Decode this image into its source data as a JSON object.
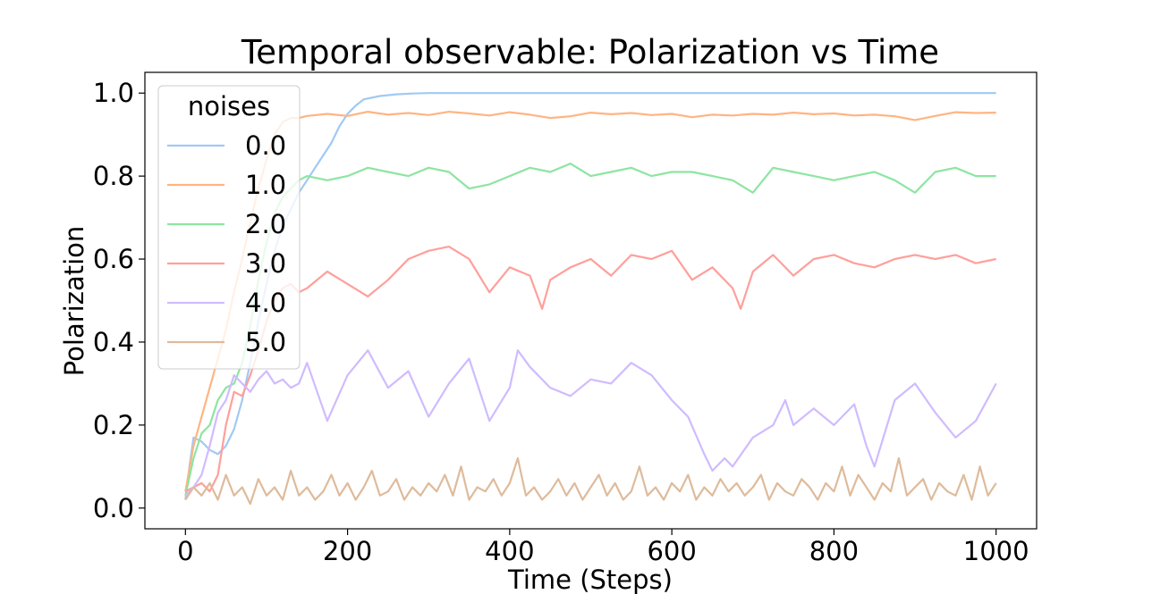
{
  "chart_data": {
    "type": "line",
    "title": "Temporal observable: Polarization vs Time",
    "xlabel": "Time (Steps)",
    "ylabel": "Polarization",
    "xlim": [
      -50,
      1050
    ],
    "ylim": [
      -0.05,
      1.05
    ],
    "xticks": [
      0,
      200,
      400,
      600,
      800,
      1000
    ],
    "xtick_labels": [
      "0",
      "200",
      "400",
      "600",
      "800",
      "1000"
    ],
    "yticks": [
      0.0,
      0.2,
      0.4,
      0.6,
      0.8,
      1.0
    ],
    "ytick_labels": [
      "0.0",
      "0.2",
      "0.4",
      "0.6",
      "0.8",
      "1.0"
    ],
    "grid": false,
    "legend": {
      "title": "noises",
      "placement": "top-left"
    },
    "series": [
      {
        "name": "0.0",
        "color": "#a1c9f4",
        "x": [
          0,
          5,
          10,
          20,
          30,
          40,
          50,
          60,
          70,
          80,
          90,
          100,
          110,
          120,
          130,
          140,
          150,
          160,
          170,
          180,
          190,
          200,
          210,
          220,
          240,
          260,
          280,
          300,
          350,
          400,
          500,
          600,
          700,
          800,
          900,
          1000
        ],
        "y": [
          0.02,
          0.1,
          0.17,
          0.16,
          0.14,
          0.13,
          0.15,
          0.19,
          0.26,
          0.35,
          0.45,
          0.54,
          0.62,
          0.68,
          0.72,
          0.76,
          0.79,
          0.82,
          0.85,
          0.88,
          0.92,
          0.95,
          0.97,
          0.985,
          0.993,
          0.997,
          0.999,
          1.0,
          1.0,
          1.0,
          1.0,
          1.0,
          1.0,
          1.0,
          1.0,
          1.0
        ]
      },
      {
        "name": "1.0",
        "color": "#ffb482",
        "x": [
          0,
          10,
          20,
          30,
          40,
          50,
          60,
          70,
          80,
          90,
          100,
          110,
          120,
          130,
          140,
          150,
          175,
          200,
          225,
          250,
          275,
          300,
          325,
          350,
          375,
          400,
          425,
          450,
          475,
          500,
          525,
          550,
          575,
          600,
          625,
          650,
          675,
          700,
          725,
          750,
          775,
          800,
          825,
          850,
          875,
          900,
          925,
          950,
          975,
          1000
        ],
        "y": [
          0.04,
          0.15,
          0.22,
          0.29,
          0.36,
          0.43,
          0.52,
          0.6,
          0.69,
          0.77,
          0.84,
          0.9,
          0.93,
          0.94,
          0.94,
          0.945,
          0.95,
          0.945,
          0.955,
          0.948,
          0.952,
          0.947,
          0.955,
          0.951,
          0.946,
          0.954,
          0.948,
          0.94,
          0.944,
          0.953,
          0.949,
          0.952,
          0.947,
          0.95,
          0.942,
          0.948,
          0.946,
          0.95,
          0.948,
          0.953,
          0.949,
          0.951,
          0.946,
          0.948,
          0.944,
          0.935,
          0.945,
          0.954,
          0.952,
          0.953
        ]
      },
      {
        "name": "2.0",
        "color": "#8de5a1",
        "x": [
          0,
          10,
          20,
          30,
          40,
          50,
          60,
          70,
          80,
          90,
          100,
          110,
          120,
          130,
          140,
          150,
          175,
          200,
          225,
          250,
          275,
          300,
          325,
          350,
          375,
          400,
          425,
          450,
          475,
          500,
          525,
          550,
          575,
          600,
          625,
          650,
          675,
          700,
          725,
          750,
          775,
          800,
          825,
          850,
          875,
          900,
          925,
          950,
          975,
          1000
        ],
        "y": [
          0.03,
          0.12,
          0.18,
          0.2,
          0.26,
          0.29,
          0.3,
          0.35,
          0.44,
          0.55,
          0.64,
          0.71,
          0.75,
          0.77,
          0.79,
          0.8,
          0.79,
          0.8,
          0.82,
          0.81,
          0.8,
          0.82,
          0.81,
          0.77,
          0.78,
          0.8,
          0.82,
          0.81,
          0.83,
          0.8,
          0.81,
          0.82,
          0.8,
          0.81,
          0.81,
          0.8,
          0.79,
          0.76,
          0.82,
          0.81,
          0.8,
          0.79,
          0.8,
          0.81,
          0.79,
          0.76,
          0.81,
          0.82,
          0.8,
          0.8
        ]
      },
      {
        "name": "3.0",
        "color": "#ff9f9b",
        "x": [
          0,
          10,
          20,
          30,
          40,
          50,
          60,
          70,
          80,
          90,
          100,
          110,
          120,
          130,
          140,
          150,
          175,
          200,
          225,
          250,
          275,
          300,
          325,
          350,
          375,
          400,
          425,
          440,
          450,
          475,
          500,
          525,
          550,
          575,
          600,
          625,
          650,
          675,
          685,
          700,
          725,
          750,
          775,
          800,
          825,
          850,
          875,
          900,
          925,
          950,
          975,
          1000
        ],
        "y": [
          0.04,
          0.05,
          0.06,
          0.04,
          0.08,
          0.2,
          0.28,
          0.27,
          0.32,
          0.38,
          0.45,
          0.5,
          0.53,
          0.54,
          0.52,
          0.53,
          0.57,
          0.54,
          0.51,
          0.55,
          0.6,
          0.62,
          0.63,
          0.6,
          0.52,
          0.58,
          0.56,
          0.48,
          0.55,
          0.58,
          0.6,
          0.56,
          0.61,
          0.6,
          0.62,
          0.55,
          0.58,
          0.53,
          0.48,
          0.57,
          0.61,
          0.56,
          0.6,
          0.61,
          0.59,
          0.58,
          0.6,
          0.61,
          0.6,
          0.61,
          0.59,
          0.6
        ]
      },
      {
        "name": "4.0",
        "color": "#d0bbff",
        "x": [
          0,
          10,
          20,
          30,
          40,
          50,
          60,
          70,
          80,
          90,
          100,
          110,
          120,
          130,
          140,
          150,
          175,
          200,
          225,
          250,
          275,
          300,
          325,
          350,
          375,
          400,
          410,
          425,
          450,
          475,
          500,
          525,
          550,
          575,
          600,
          620,
          640,
          650,
          665,
          675,
          700,
          725,
          740,
          750,
          775,
          800,
          825,
          840,
          850,
          875,
          900,
          925,
          950,
          975,
          1000
        ],
        "y": [
          0.03,
          0.05,
          0.08,
          0.15,
          0.23,
          0.26,
          0.32,
          0.3,
          0.28,
          0.31,
          0.33,
          0.3,
          0.31,
          0.29,
          0.3,
          0.35,
          0.21,
          0.32,
          0.38,
          0.29,
          0.33,
          0.22,
          0.3,
          0.36,
          0.21,
          0.29,
          0.38,
          0.34,
          0.29,
          0.27,
          0.31,
          0.3,
          0.35,
          0.32,
          0.26,
          0.22,
          0.13,
          0.09,
          0.12,
          0.1,
          0.17,
          0.2,
          0.26,
          0.2,
          0.24,
          0.2,
          0.25,
          0.15,
          0.1,
          0.26,
          0.3,
          0.23,
          0.17,
          0.21,
          0.3
        ]
      },
      {
        "name": "5.0",
        "color": "#debb9b",
        "x": [
          0,
          10,
          20,
          30,
          40,
          50,
          60,
          70,
          80,
          90,
          100,
          110,
          120,
          130,
          140,
          150,
          160,
          170,
          180,
          190,
          200,
          210,
          220,
          230,
          240,
          250,
          260,
          270,
          280,
          290,
          300,
          310,
          320,
          330,
          340,
          350,
          360,
          370,
          380,
          390,
          400,
          410,
          420,
          430,
          440,
          450,
          460,
          470,
          480,
          490,
          500,
          510,
          520,
          530,
          540,
          550,
          560,
          570,
          580,
          590,
          600,
          610,
          620,
          630,
          640,
          650,
          660,
          670,
          680,
          690,
          700,
          710,
          720,
          730,
          740,
          750,
          760,
          770,
          780,
          790,
          800,
          810,
          820,
          830,
          840,
          850,
          860,
          870,
          880,
          890,
          900,
          910,
          920,
          930,
          940,
          950,
          960,
          970,
          980,
          990,
          1000
        ],
        "y": [
          0.02,
          0.05,
          0.03,
          0.06,
          0.02,
          0.08,
          0.03,
          0.05,
          0.01,
          0.07,
          0.03,
          0.05,
          0.02,
          0.09,
          0.03,
          0.05,
          0.02,
          0.04,
          0.08,
          0.03,
          0.06,
          0.02,
          0.05,
          0.09,
          0.03,
          0.04,
          0.07,
          0.02,
          0.05,
          0.03,
          0.06,
          0.04,
          0.08,
          0.03,
          0.1,
          0.02,
          0.05,
          0.04,
          0.07,
          0.03,
          0.06,
          0.12,
          0.03,
          0.05,
          0.02,
          0.04,
          0.07,
          0.03,
          0.06,
          0.02,
          0.05,
          0.08,
          0.03,
          0.06,
          0.02,
          0.04,
          0.1,
          0.03,
          0.05,
          0.02,
          0.06,
          0.04,
          0.08,
          0.02,
          0.05,
          0.03,
          0.07,
          0.04,
          0.06,
          0.03,
          0.05,
          0.08,
          0.02,
          0.06,
          0.04,
          0.03,
          0.07,
          0.05,
          0.02,
          0.06,
          0.04,
          0.1,
          0.03,
          0.08,
          0.05,
          0.02,
          0.06,
          0.04,
          0.12,
          0.03,
          0.05,
          0.07,
          0.02,
          0.06,
          0.04,
          0.03,
          0.08,
          0.02,
          0.1,
          0.03,
          0.06
        ]
      }
    ]
  }
}
